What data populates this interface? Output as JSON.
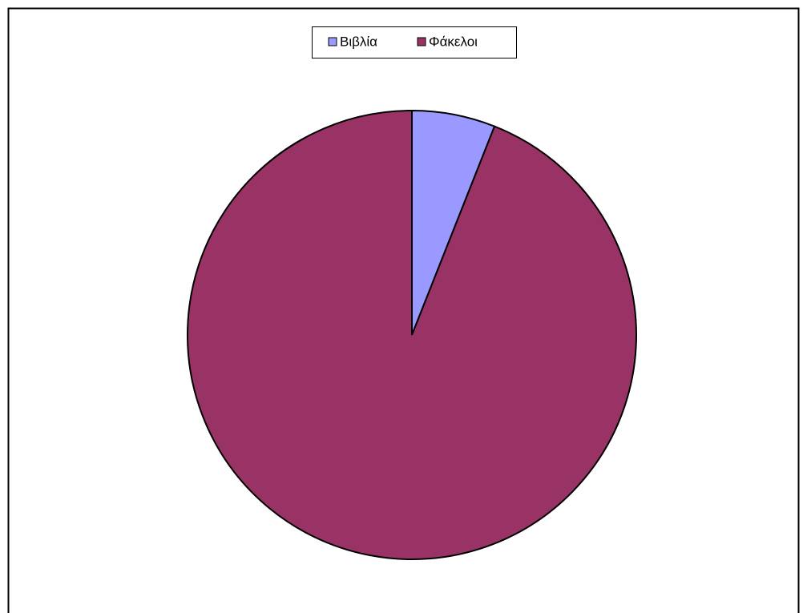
{
  "chart_data": {
    "type": "pie",
    "categories": [
      "Βιβλία",
      "Φάκελοι"
    ],
    "values": [
      6,
      94
    ],
    "colors": [
      "#9999ff",
      "#993366"
    ],
    "legend": "top"
  }
}
